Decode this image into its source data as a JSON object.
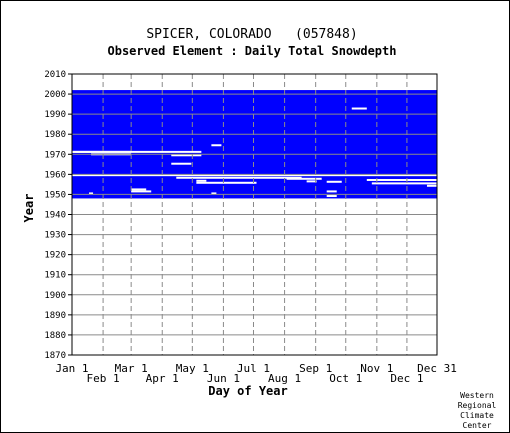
{
  "chart_data": {
    "type": "heatmap",
    "title": "SPICER, COLORADO   (057848)",
    "subtitle": "Observed Element : Daily Total Snowdepth",
    "xlabel": "Day of Year",
    "ylabel": "Year",
    "x_ticks_upper": [
      {
        "label": "Jan 1",
        "day": 1
      },
      {
        "label": "Mar 1",
        "day": 60
      },
      {
        "label": "May 1",
        "day": 121
      },
      {
        "label": "Jul 1",
        "day": 182
      },
      {
        "label": "Sep 1",
        "day": 244
      },
      {
        "label": "Nov 1",
        "day": 305
      },
      {
        "label": "Dec 31",
        "day": 365
      }
    ],
    "x_ticks_lower": [
      {
        "label": "Feb 1",
        "day": 32
      },
      {
        "label": "Apr 1",
        "day": 91
      },
      {
        "label": "Jun 1",
        "day": 152
      },
      {
        "label": "Aug 1",
        "day": 213
      },
      {
        "label": "Oct 1",
        "day": 274
      },
      {
        "label": "Dec 1",
        "day": 335
      }
    ],
    "y_ticks": [
      1870,
      1880,
      1890,
      1900,
      1910,
      1920,
      1930,
      1940,
      1950,
      1960,
      1970,
      1980,
      1990,
      2000,
      2010
    ],
    "ylim": [
      1870,
      2010
    ],
    "xlim": [
      1,
      365
    ],
    "data_color": "#0000ff",
    "period_of_record": {
      "start_year": 1948,
      "end_year": 2002
    },
    "missing_records": [
      {
        "year": 2002.5,
        "day_start": 1,
        "day_end": 30
      },
      {
        "year": 1971.2,
        "day_start": 1,
        "day_end": 60
      },
      {
        "year": 1971.2,
        "day_start": 1,
        "day_end": 130
      },
      {
        "year": 1970,
        "day_start": 20,
        "day_end": 60
      },
      {
        "year": 1969.5,
        "day_start": 100,
        "day_end": 130
      },
      {
        "year": 1965.3,
        "day_start": 100,
        "day_end": 120
      },
      {
        "year": 1959.6,
        "day_start": 1,
        "day_end": 365
      },
      {
        "year": 1958.3,
        "day_start": 105,
        "day_end": 230
      },
      {
        "year": 1957.8,
        "day_start": 215,
        "day_end": 250
      },
      {
        "year": 1957.2,
        "day_start": 295,
        "day_end": 365
      },
      {
        "year": 1956.8,
        "day_start": 125,
        "day_end": 135
      },
      {
        "year": 1955.8,
        "day_start": 125,
        "day_end": 185
      },
      {
        "year": 1956.5,
        "day_start": 235,
        "day_end": 245
      },
      {
        "year": 1956.3,
        "day_start": 255,
        "day_end": 270
      },
      {
        "year": 1955.5,
        "day_start": 300,
        "day_end": 365
      },
      {
        "year": 1952.5,
        "day_start": 60,
        "day_end": 75
      },
      {
        "year": 1951.5,
        "day_start": 60,
        "day_end": 80
      },
      {
        "year": 1951.5,
        "day_start": 255,
        "day_end": 265
      },
      {
        "year": 1950.5,
        "day_start": 18,
        "day_end": 22
      },
      {
        "year": 1950.5,
        "day_start": 140,
        "day_end": 145
      },
      {
        "year": 1949.2,
        "day_start": 255,
        "day_end": 265
      },
      {
        "year": 1992.8,
        "day_start": 280,
        "day_end": 295
      },
      {
        "year": 1954.3,
        "day_start": 355,
        "day_end": 365
      },
      {
        "year": 1974.5,
        "day_start": 140,
        "day_end": 150
      }
    ]
  },
  "credit": [
    "Western",
    "Regional",
    "Climate",
    "Center"
  ]
}
